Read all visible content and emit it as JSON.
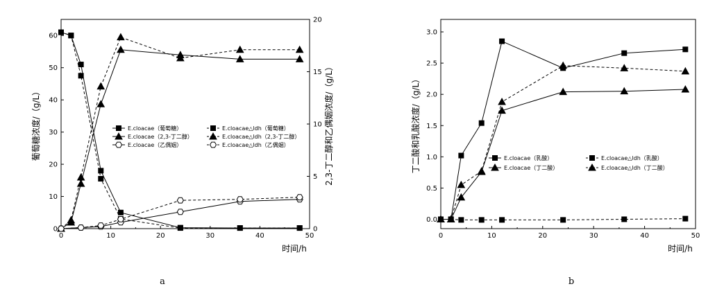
{
  "panels": [
    "a",
    "b"
  ],
  "chart_data": [
    {
      "type": "line",
      "panel": "a",
      "xlabel": "时间/h",
      "ylabel": "葡萄糖浓度/（g/L）",
      "y2label": "2,3-丁二醇和乙偶姻浓度/（g/L）",
      "xlim": [
        0,
        50
      ],
      "ylim": [
        0,
        65
      ],
      "y2lim": [
        0,
        20
      ],
      "xticks": [
        0,
        10,
        20,
        30,
        40,
        50
      ],
      "yticks": [
        0,
        10,
        20,
        30,
        40,
        50,
        60
      ],
      "y2ticks": [
        0,
        5,
        10,
        15,
        20
      ],
      "legend_position": "center-right",
      "series": [
        {
          "name": "E.cloacae（葡萄糖）",
          "axis": "left",
          "marker": "square",
          "dash": "solid",
          "x": [
            0,
            2,
            4,
            8,
            12,
            24,
            36,
            48
          ],
          "y": [
            61,
            60,
            51,
            18,
            5,
            0.3,
            0.2,
            0.2
          ]
        },
        {
          "name": "E.cloacae△ldh（葡萄糖）",
          "axis": "left",
          "marker": "square",
          "dash": "dashed",
          "x": [
            0,
            2,
            4,
            8,
            12,
            24,
            36,
            48
          ],
          "y": [
            61,
            60,
            47.5,
            15.5,
            3,
            0.2,
            0.2,
            0.2
          ]
        },
        {
          "name": "E.cloacae（2,3-丁二醇）",
          "axis": "right",
          "marker": "triangle",
          "dash": "solid",
          "x": [
            0,
            2,
            4,
            8,
            12,
            24,
            36,
            48
          ],
          "y": [
            0,
            0.6,
            4.3,
            11.9,
            17.1,
            16.6,
            16.2,
            16.2
          ]
        },
        {
          "name": "E.cloacae△ldh（2,3-丁二醇）",
          "axis": "right",
          "marker": "triangle",
          "dash": "dashed",
          "x": [
            0,
            2,
            4,
            8,
            12,
            24,
            36,
            48
          ],
          "y": [
            0,
            0.8,
            4.9,
            13.6,
            18.3,
            16.3,
            17.1,
            17.1
          ]
        },
        {
          "name": "E.cloacae（乙偶姻）",
          "axis": "right",
          "marker": "hexagon",
          "dash": "solid",
          "x": [
            0,
            4,
            8,
            12,
            24,
            36,
            48
          ],
          "y": [
            0,
            0.1,
            0.2,
            0.6,
            1.6,
            2.6,
            2.8
          ]
        },
        {
          "name": "E.cloacae△ldh（乙偶姻）",
          "axis": "right",
          "marker": "hexagon",
          "dash": "dashed",
          "x": [
            0,
            4,
            8,
            12,
            24,
            36,
            48
          ],
          "y": [
            0,
            0.1,
            0.3,
            0.9,
            2.7,
            2.8,
            3.0
          ]
        }
      ]
    },
    {
      "type": "line",
      "panel": "b",
      "xlabel": "时间/h",
      "ylabel": "丁二酸和乳酸浓度/（g/L）",
      "xlim": [
        0,
        50
      ],
      "ylim": [
        -0.15,
        3.2
      ],
      "xticks": [
        0,
        10,
        20,
        30,
        40,
        50
      ],
      "yticks": [
        0.0,
        0.5,
        1.0,
        1.5,
        2.0,
        2.5,
        3.0
      ],
      "ytick_labels": [
        "0.0",
        "0.5",
        "1.0",
        "1.5",
        "2.0",
        "2.5",
        "3.0"
      ],
      "legend_position": "center",
      "series": [
        {
          "name": "E.cloacae（乳酸）",
          "marker": "square",
          "dash": "solid",
          "x": [
            0,
            2,
            4,
            8,
            12,
            24,
            36,
            48
          ],
          "y": [
            0,
            0,
            1.02,
            1.54,
            2.85,
            2.42,
            2.66,
            2.72
          ]
        },
        {
          "name": "E.cloacae△ldh（乳酸）",
          "marker": "square",
          "dash": "dashed",
          "x": [
            0,
            2,
            4,
            8,
            12,
            24,
            36,
            48
          ],
          "y": [
            0,
            0,
            -0.01,
            -0.01,
            -0.01,
            -0.01,
            0,
            0.01
          ]
        },
        {
          "name": "E.cloacae（丁二酸）",
          "marker": "triangle",
          "dash": "solid",
          "x": [
            0,
            2,
            4,
            8,
            12,
            24,
            36,
            48
          ],
          "y": [
            0,
            0,
            0.35,
            0.76,
            1.74,
            2.04,
            2.05,
            2.08
          ]
        },
        {
          "name": "E.cloacae△ldh（丁二酸）",
          "marker": "triangle",
          "dash": "dashed",
          "x": [
            0,
            2,
            4,
            8,
            12,
            24,
            36,
            48
          ],
          "y": [
            0,
            0,
            0.55,
            0.77,
            1.88,
            2.46,
            2.42,
            2.37
          ]
        }
      ]
    }
  ]
}
